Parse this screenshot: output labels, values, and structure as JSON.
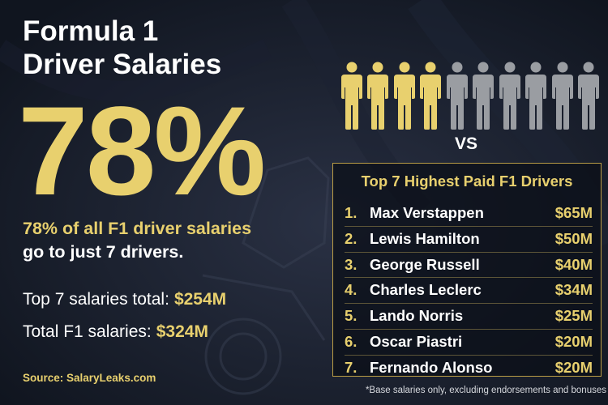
{
  "colors": {
    "gold": "#e8d06e",
    "gray": "#9a9da2",
    "background": "#141a28",
    "panel_border": "#b99c45"
  },
  "title": {
    "line1": "Formula 1",
    "line2": "Driver Salaries"
  },
  "headline": {
    "percent": "78%",
    "line1": "78% of all F1 driver salaries",
    "line2": "go to just 7 drivers."
  },
  "stats": {
    "top7_label": "Top 7 salaries total:",
    "top7_value": "$254M",
    "total_label": "Total F1 salaries:",
    "total_value": "$324M"
  },
  "source": "Source: SalaryLeaks.com",
  "people_icon": {
    "icon": "person-icon",
    "total": 10,
    "highlighted": 4
  },
  "vs": "VS",
  "panel": {
    "title": "Top 7 Highest Paid F1 Drivers",
    "drivers": [
      {
        "rank": "1.",
        "name": "Max Verstappen",
        "salary": "$65M"
      },
      {
        "rank": "2.",
        "name": "Lewis Hamilton",
        "salary": "$50M"
      },
      {
        "rank": "3.",
        "name": "George Russell",
        "salary": "$40M"
      },
      {
        "rank": "4.",
        "name": "Charles Leclerc",
        "salary": "$34M"
      },
      {
        "rank": "5.",
        "name": "Lando Norris",
        "salary": "$25M"
      },
      {
        "rank": "6.",
        "name": "Oscar Piastri",
        "salary": "$20M"
      },
      {
        "rank": "7.",
        "name": "Fernando Alonso",
        "salary": "$20M"
      }
    ]
  },
  "footnote": "*Base salaries only, excluding endorsements and bonuses"
}
